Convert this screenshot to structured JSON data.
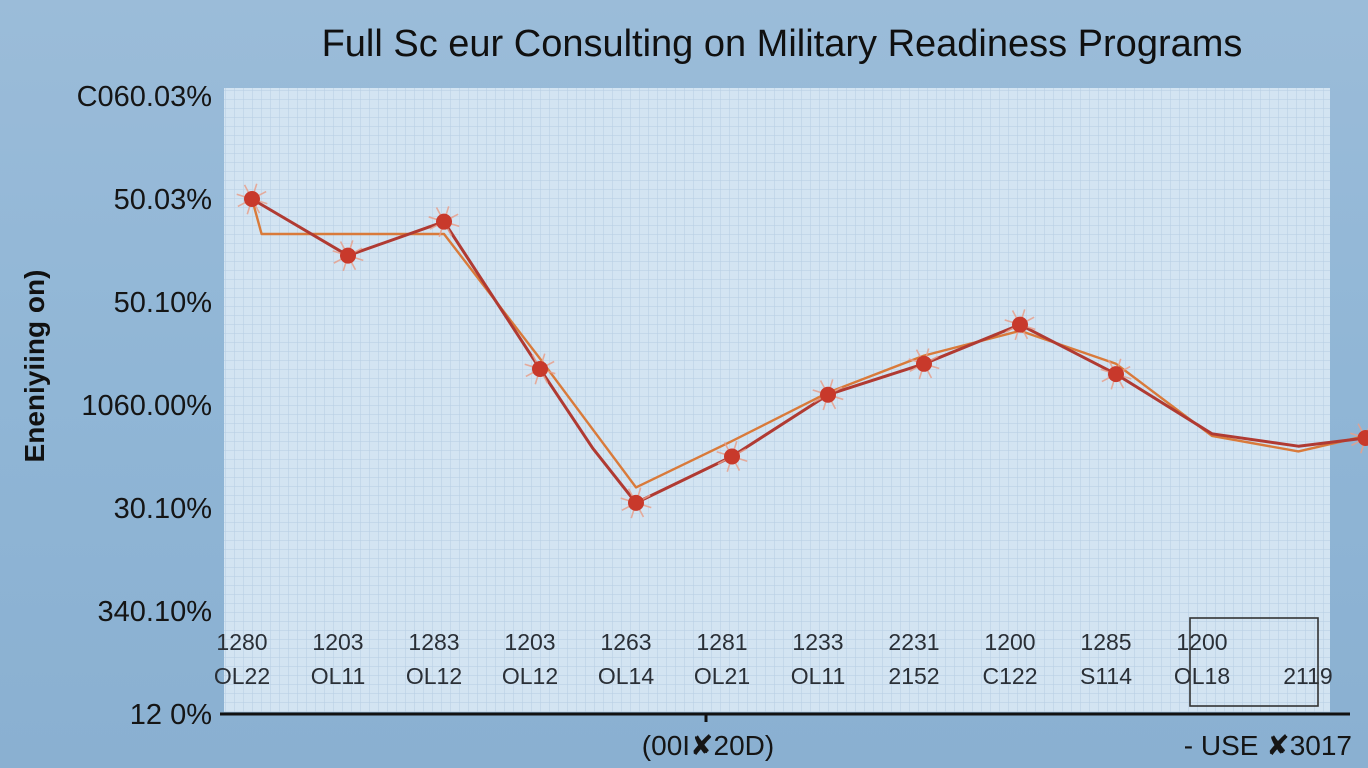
{
  "chart_data": {
    "type": "line",
    "title": "Full Sc eur Consulting on Military Readiness Programs",
    "ylabel": "Eneniyiing on)",
    "xlabel": "(00I✘20D)",
    "corner_label": "- USE ✘3017",
    "y_tick_labels": [
      "C060.03%",
      "50.03%",
      "50.10%",
      "1060.00%",
      "30.10%",
      "340.10%",
      "12    0%"
    ],
    "ylim": [
      0,
      6
    ],
    "x_categories": [
      {
        "code": "1280",
        "sub": "OL22"
      },
      {
        "code": "1203",
        "sub": "OL11"
      },
      {
        "code": "1283",
        "sub": "OL12"
      },
      {
        "code": "1203",
        "sub": "OL12"
      },
      {
        "code": "1263",
        "sub": "OL14"
      },
      {
        "code": "1281",
        "sub": "OL21"
      },
      {
        "code": "1233",
        "sub": "OL11"
      },
      {
        "code": "2231",
        "sub": "2152"
      },
      {
        "code": "1200",
        "sub": "C122"
      },
      {
        "code": "1285",
        "sub": "S114"
      },
      {
        "code": "1200",
        "sub": "OL18"
      },
      {
        "code": "",
        "sub": "2119"
      }
    ],
    "grid": true,
    "series": [
      {
        "color": "#b03a32",
        "marker": true,
        "x": [
          0,
          1,
          2,
          3,
          3.55,
          4,
          5,
          6,
          7,
          8,
          9,
          10,
          10.9,
          11.6
        ],
        "y": [
          5.0,
          4.45,
          4.78,
          3.35,
          2.58,
          2.05,
          2.5,
          3.1,
          3.4,
          3.78,
          3.3,
          2.72,
          2.6,
          2.68
        ],
        "marked": [
          true,
          true,
          true,
          true,
          false,
          true,
          true,
          true,
          true,
          true,
          true,
          false,
          false,
          true
        ]
      },
      {
        "color": "#d97a3a",
        "marker": false,
        "x": [
          0,
          0.1,
          2,
          3,
          4,
          5,
          6,
          7,
          8,
          9,
          10,
          10.9,
          11.6
        ],
        "y": [
          5.0,
          4.66,
          4.66,
          3.45,
          2.2,
          2.65,
          3.12,
          3.48,
          3.72,
          3.4,
          2.7,
          2.55,
          2.7
        ]
      }
    ]
  }
}
